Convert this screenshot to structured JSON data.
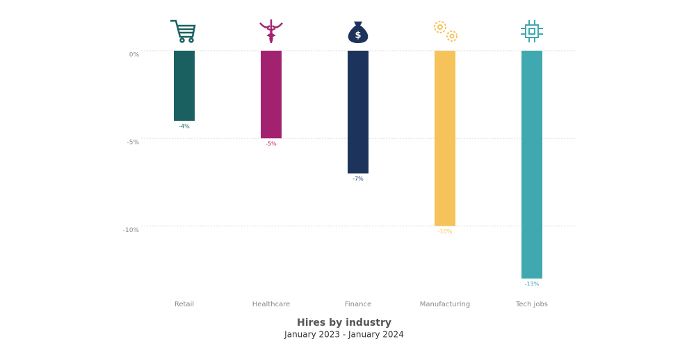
{
  "chart_data": {
    "type": "bar",
    "title": "Hires by industry",
    "subtitle": "January 2023 - January 2024",
    "categories": [
      "Retail",
      "Healthcare",
      "Finance",
      "Manufacturing",
      "Tech jobs"
    ],
    "values": [
      -4,
      -5,
      -7,
      -10,
      -13
    ],
    "value_labels": [
      "-4%",
      "-5%",
      "-7%",
      "-10%",
      "-13%"
    ],
    "colors": [
      "#1a6060",
      "#a3226f",
      "#1c335c",
      "#f5c35a",
      "#40a8b0"
    ],
    "ylim": [
      -13,
      0
    ],
    "yticks": [
      {
        "value": 0,
        "label": "0%"
      },
      {
        "value": -5,
        "label": "-5%"
      },
      {
        "value": -10,
        "label": "-10%"
      }
    ],
    "grid": true
  }
}
